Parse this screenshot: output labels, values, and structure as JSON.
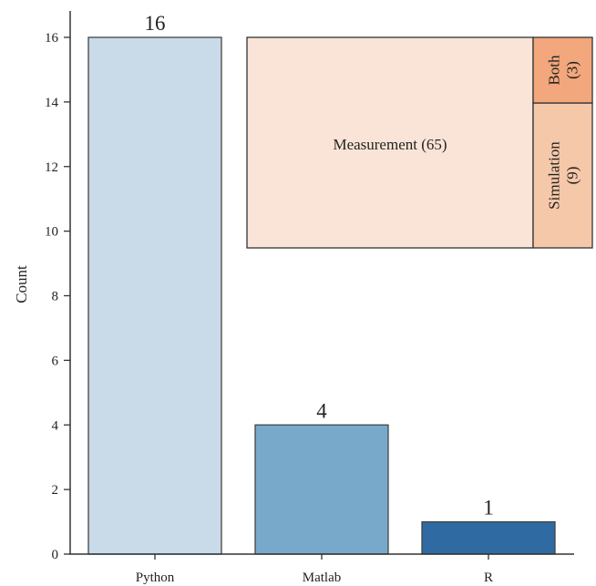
{
  "chart_data": [
    {
      "type": "bar",
      "title": "",
      "xlabel": "",
      "ylabel": "Count",
      "categories": [
        "Python",
        "Matlab",
        "R"
      ],
      "values": [
        16,
        4,
        1
      ],
      "data_labels": [
        "16",
        "4",
        "1"
      ],
      "yticks": [
        0,
        2,
        4,
        6,
        8,
        10,
        12,
        14,
        16
      ],
      "ylim": [
        0,
        16.8
      ],
      "grid": false,
      "colors": [
        "#c9dae9",
        "#78a9cb",
        "#2f6aa3"
      ],
      "edge_color": "#444444"
    },
    {
      "type": "treemap",
      "items": [
        {
          "name": "Measurement",
          "value": 65,
          "label": "Measurement (65)",
          "color": "#fae4d7"
        },
        {
          "name": "Simulation",
          "value": 9,
          "label_line1": "Simulation",
          "label_line2": "(9)",
          "color": "#f6c8aa"
        },
        {
          "name": "Both",
          "value": 3,
          "label_line1": "Both",
          "label_line2": "(3)",
          "color": "#f2a77c"
        }
      ]
    }
  ]
}
